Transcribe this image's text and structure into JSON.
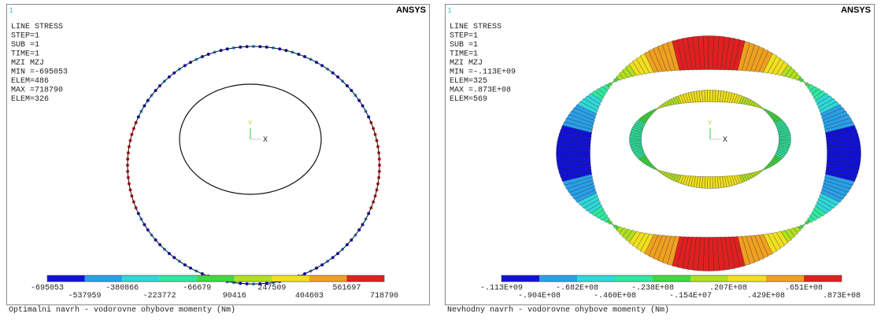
{
  "panels": [
    {
      "window_number": "1",
      "logo": "ANSYS",
      "info": [
        "LINE STRESS",
        "STEP=1",
        "SUB =1",
        "TIME=1",
        "MZI      MZJ",
        "MIN =-695053",
        "ELEM=486",
        "MAX =718790",
        "ELEM=326"
      ],
      "axis_y": "Y",
      "axis_x": "X",
      "legend": [
        "-695053",
        "-537959",
        "-380866",
        "-223772",
        "-66679",
        "90416",
        "247509",
        "404603",
        "561697",
        "718790"
      ],
      "caption": "Optimalni navrh - vodorovne ohybove momenty (Nm)"
    },
    {
      "window_number": "1",
      "logo": "ANSYS",
      "info": [
        "LINE STRESS",
        "STEP=1",
        "SUB =1",
        "TIME=1",
        "MZI      MZJ",
        "MIN =-.113E+09",
        "ELEM=325",
        "MAX =.873E+08",
        "ELEM=569"
      ],
      "axis_y": "Y",
      "axis_x": "X",
      "legend": [
        "-.113E+09",
        "-.904E+08",
        "-.682E+08",
        "-.460E+08",
        "-.238E+08",
        "-.154E+07",
        ".207E+08",
        ".429E+08",
        ".651E+08",
        ".873E+08"
      ],
      "caption": "Nevhodny navrh - vodorovne ohybove momenty (Nm)"
    }
  ]
}
